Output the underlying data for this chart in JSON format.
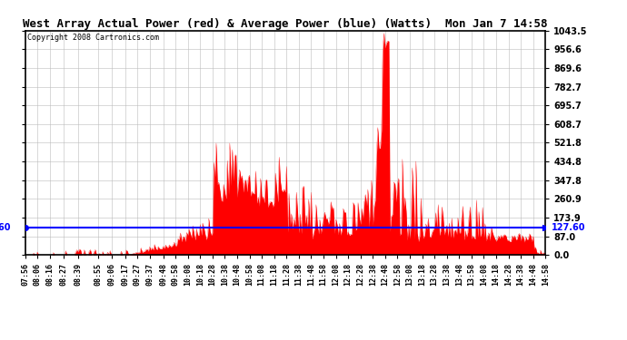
{
  "title": "West Array Actual Power (red) & Average Power (blue) (Watts)  Mon Jan 7 14:58",
  "copyright": "Copyright 2008 Cartronics.com",
  "avg_power": 127.6,
  "ymax": 1043.5,
  "ymin": 0.0,
  "yticks": [
    0.0,
    87.0,
    173.9,
    260.9,
    347.8,
    434.8,
    521.8,
    608.7,
    695.7,
    782.7,
    869.6,
    956.6,
    1043.5
  ],
  "bg_color": "#ffffff",
  "grid_color": "#bbbbbb",
  "red_color": "#ff0000",
  "blue_color": "#0000ff",
  "title_bg": "#c8c8c8",
  "xtick_labels": [
    "07:56",
    "08:06",
    "08:16",
    "08:27",
    "08:39",
    "08:55",
    "09:06",
    "09:17",
    "09:27",
    "09:37",
    "09:48",
    "09:58",
    "10:08",
    "10:18",
    "10:28",
    "10:38",
    "10:48",
    "10:58",
    "11:08",
    "11:18",
    "11:28",
    "11:38",
    "11:48",
    "11:58",
    "12:08",
    "12:18",
    "12:28",
    "12:38",
    "12:48",
    "12:58",
    "13:08",
    "13:18",
    "13:28",
    "13:38",
    "13:48",
    "13:58",
    "14:08",
    "14:18",
    "14:28",
    "14:38",
    "14:48",
    "14:58"
  ]
}
